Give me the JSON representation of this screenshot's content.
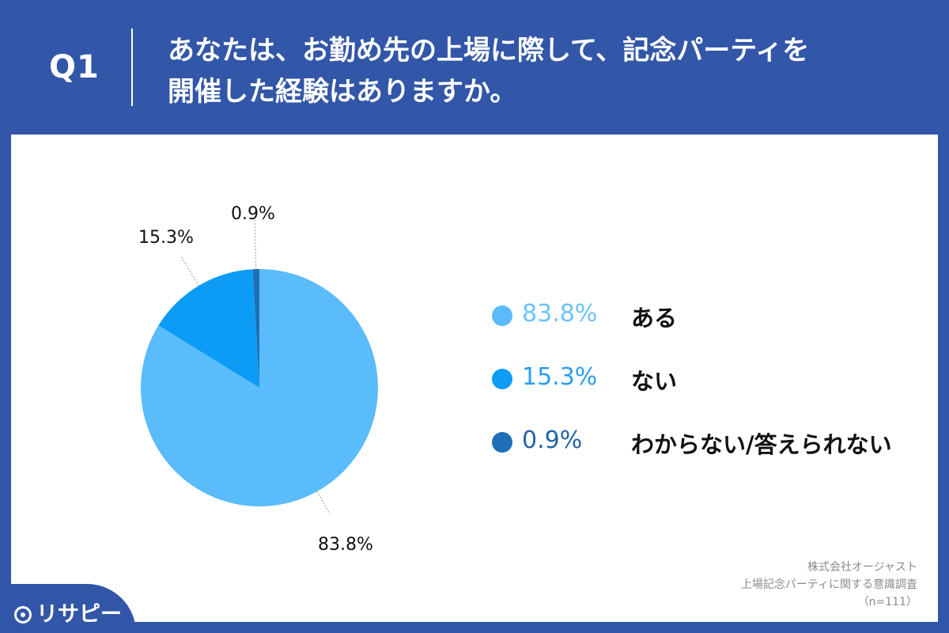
{
  "header": {
    "question_number": "Q1",
    "question_line1": "あなたは、お勤め先の上場に際して、記念パーティを",
    "question_line2": "開催した経験はありますか。"
  },
  "chart_data": {
    "type": "pie",
    "title": "",
    "slices": [
      {
        "label": "ある",
        "value": 83.8,
        "display": "83.8%",
        "color": "#5bbcfb"
      },
      {
        "label": "ない",
        "value": 15.3,
        "display": "15.3%",
        "color": "#0c9cf5"
      },
      {
        "label": "わからない/答えられない",
        "value": 0.9,
        "display": "0.9%",
        "color": "#1e6fb8"
      }
    ],
    "legend_placement": "right",
    "legend_text_colors": [
      "#6cc3fb",
      "#2a9ef2",
      "#2464a8"
    ]
  },
  "source": {
    "line1": "株式会社オージャスト",
    "line2": "上場記念パーティに関する意識調査",
    "line3": "（n=111）"
  },
  "logo": {
    "text": "リサピー"
  },
  "colors": {
    "background": "#3256a8",
    "panel": "#ffffff"
  }
}
